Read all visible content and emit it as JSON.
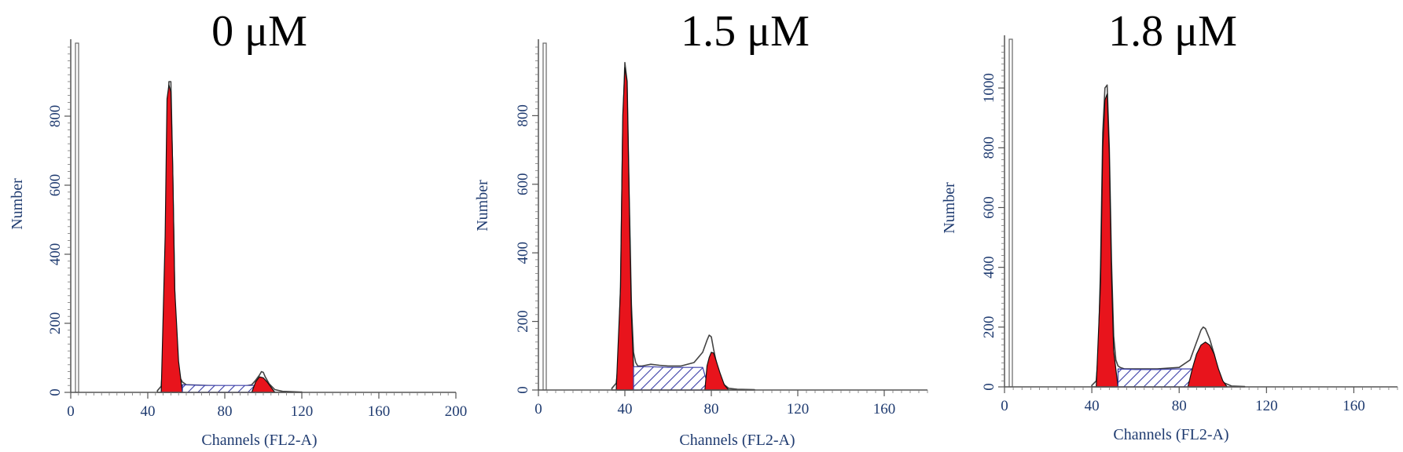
{
  "chart_data": [
    {
      "type": "area",
      "title": "0 μM",
      "xlabel": "Channels (FL2-A)",
      "ylabel": "Number",
      "xlim": [
        0,
        200
      ],
      "ylim": [
        0,
        1000
      ],
      "xticks": [
        0,
        40,
        80,
        120,
        160,
        200
      ],
      "yticks": [
        0,
        200,
        400,
        600,
        800
      ],
      "grid": false,
      "series": [
        {
          "values": {
            "x": [
              45,
              47,
              48,
              49,
              50,
              51,
              52,
              53,
              54,
              55,
              56,
              57,
              58,
              60,
              70,
              80,
              90,
              94,
              96,
              98,
              99,
              100,
              101,
              103,
              106,
              110,
              120
            ],
            "y": [
              5,
              18,
              90,
              300,
              680,
              900,
              900,
              620,
              290,
              110,
              60,
              40,
              30,
              22,
              20,
              18,
              18,
              22,
              35,
              50,
              60,
              58,
              45,
              25,
              8,
              3,
              1
            ]
          }
        },
        {
          "values": {
            "x": [
              47,
              49,
              50,
              51,
              52,
              53,
              54,
              56,
              58
            ],
            "y": [
              0,
              450,
              850,
              890,
              870,
              650,
              300,
              90,
              0
            ]
          }
        },
        {
          "values": {
            "x": [
              58,
              70,
              80,
              92,
              96
            ],
            "y": [
              22,
              20,
              20,
              20,
              20
            ]
          }
        },
        {
          "values": {
            "x": [
              94,
              96,
              98,
              100,
              102,
              104,
              106
            ],
            "y": [
              0,
              30,
              45,
              42,
              30,
              15,
              0
            ]
          }
        }
      ]
    },
    {
      "type": "area",
      "title": "1.5 μM",
      "xlabel": "Channels (FL2-A)",
      "ylabel": "Number",
      "xlim": [
        0,
        180
      ],
      "ylim": [
        0,
        1000
      ],
      "xticks": [
        0,
        40,
        80,
        120,
        160
      ],
      "yticks": [
        0,
        200,
        400,
        600,
        800
      ],
      "grid": false,
      "series": [
        {
          "values": {
            "x": [
              34,
              36,
              37,
              38,
              39,
              40,
              41,
              42,
              43,
              44,
              45,
              46,
              48,
              52,
              56,
              60,
              66,
              72,
              76,
              78,
              79,
              80,
              81,
              82,
              84,
              86,
              88,
              92,
              100
            ],
            "y": [
              5,
              20,
              80,
              300,
              750,
              955,
              900,
              560,
              250,
              110,
              80,
              70,
              70,
              75,
              72,
              70,
              70,
              80,
              110,
              145,
              160,
              155,
              120,
              90,
              40,
              15,
              5,
              2,
              1
            ]
          }
        },
        {
          "values": {
            "x": [
              36,
              38,
              39,
              40,
              41,
              42,
              43,
              44,
              46
            ],
            "y": [
              0,
              300,
              800,
              940,
              900,
              560,
              220,
              70,
              0
            ]
          }
        },
        {
          "values": {
            "x": [
              44,
              52,
              60,
              70,
              76,
              79
            ],
            "y": [
              68,
              68,
              66,
              66,
              66,
              0
            ]
          }
        },
        {
          "values": {
            "x": [
              77,
              78,
              79,
              80,
              81,
              82,
              84,
              86,
              88
            ],
            "y": [
              0,
              70,
              95,
              110,
              108,
              90,
              50,
              15,
              0
            ]
          }
        }
      ]
    },
    {
      "type": "area",
      "title": "1.8 μM",
      "xlabel": "Channels (FL2-A)",
      "ylabel": "Number",
      "xlim": [
        0,
        180
      ],
      "ylim": [
        0,
        1150
      ],
      "xticks": [
        0,
        40,
        80,
        120,
        160
      ],
      "yticks": [
        0,
        200,
        400,
        600,
        800,
        1000
      ],
      "grid": false,
      "series": [
        {
          "values": {
            "x": [
              40,
              42,
              43,
              44,
              45,
              46,
              47,
              48,
              49,
              50,
              51,
              52,
              53,
              55,
              60,
              70,
              80,
              85,
              88,
              90,
              91,
              92,
              94,
              96,
              98,
              100,
              104,
              110
            ],
            "y": [
              5,
              20,
              110,
              400,
              850,
              1000,
              1010,
              800,
              420,
              170,
              90,
              70,
              65,
              60,
              60,
              60,
              65,
              90,
              150,
              190,
              200,
              195,
              160,
              110,
              50,
              15,
              3,
              1
            ]
          }
        },
        {
          "values": {
            "x": [
              42,
              44,
              45,
              46,
              47,
              48,
              49,
              50,
              52
            ],
            "y": [
              0,
              350,
              800,
              960,
              980,
              780,
              380,
              120,
              0
            ]
          }
        },
        {
          "values": {
            "x": [
              52,
              60,
              70,
              80,
              86,
              88
            ],
            "y": [
              60,
              58,
              58,
              60,
              60,
              0
            ]
          }
        },
        {
          "values": {
            "x": [
              84,
              86,
              88,
              90,
              92,
              94,
              96,
              98,
              100,
              102
            ],
            "y": [
              0,
              60,
              110,
              140,
              150,
              140,
              110,
              60,
              20,
              0
            ]
          }
        }
      ]
    }
  ]
}
